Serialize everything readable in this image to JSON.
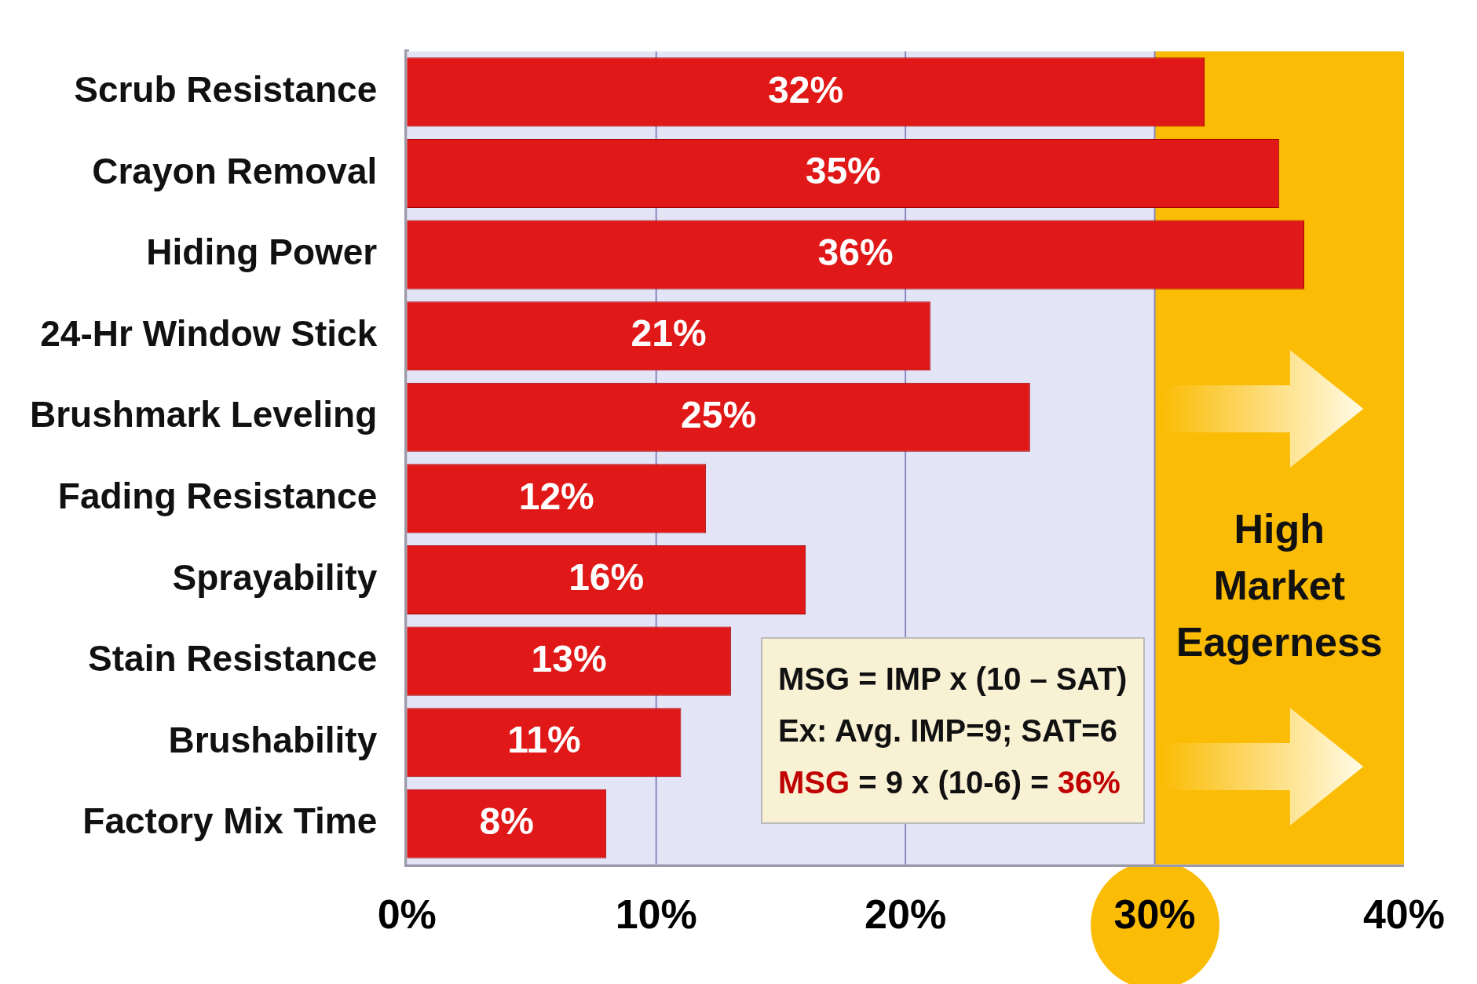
{
  "chart_data": {
    "type": "bar",
    "orientation": "horizontal",
    "categories": [
      "Scrub Resistance",
      "Crayon Removal",
      "Hiding Power",
      "24-Hr Window Stick",
      "Brushmark Leveling",
      "Fading Resistance",
      "Sprayability",
      "Stain Resistance",
      "Brushability",
      "Factory Mix Time"
    ],
    "values": [
      32,
      35,
      36,
      21,
      25,
      12,
      16,
      13,
      11,
      8
    ],
    "value_labels": [
      "32%",
      "35%",
      "36%",
      "21%",
      "25%",
      "12%",
      "16%",
      "13%",
      "11%",
      "8%"
    ],
    "color": "#e01818",
    "xlim": [
      0,
      40
    ],
    "xticks": [
      {
        "value": 0,
        "label": "0%"
      },
      {
        "value": 10,
        "label": "10%"
      },
      {
        "value": 20,
        "label": "20%"
      },
      {
        "value": 30,
        "label": "30%"
      },
      {
        "value": 40,
        "label": "40%"
      }
    ],
    "grid": "x",
    "bands": [
      {
        "axis": "x",
        "from": 30,
        "to": 40,
        "label": "High Market Eagerness",
        "color": "#fbbc05"
      }
    ],
    "annotations": [
      "MSG = IMP x (10 – SAT)",
      "Ex: Avg. IMP=9;  SAT=6",
      "MSG = 9 x (10-6) = 36%"
    ]
  }
}
